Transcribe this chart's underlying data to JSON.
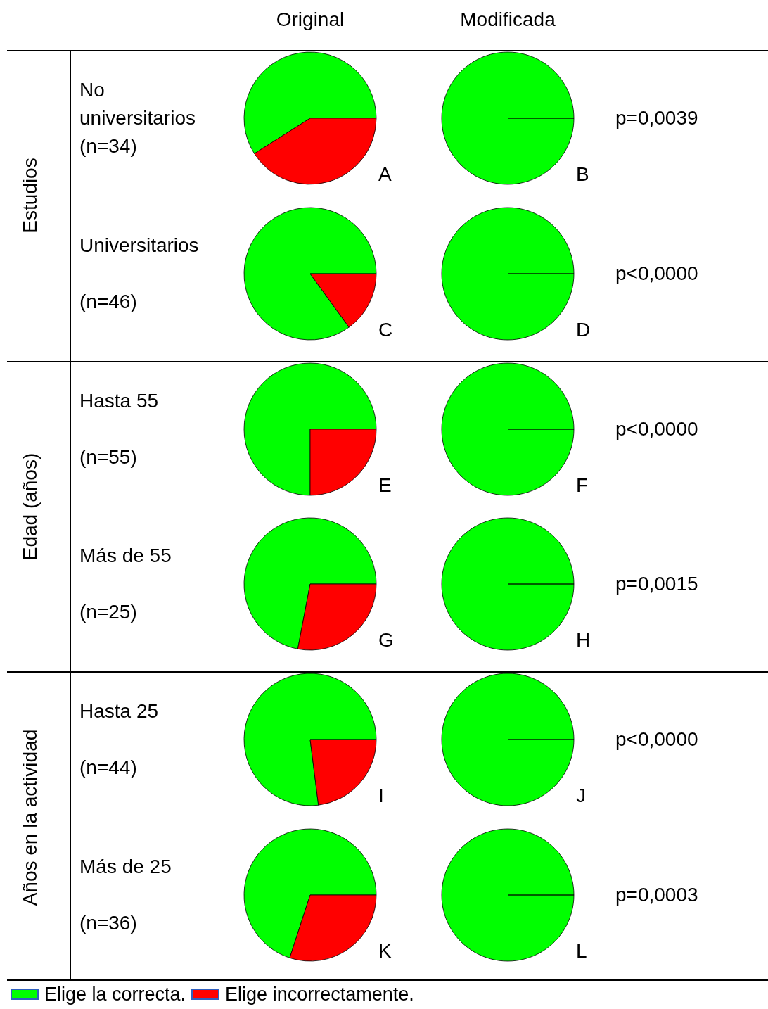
{
  "chart_data": [
    {
      "type": "pie",
      "title": "A",
      "subtitle": "Original",
      "categories": [
        "Elige la correcta.",
        "Elige incorrectamente."
      ],
      "values": [
        59,
        41
      ],
      "colors": [
        "#00ff00",
        "#ff0000"
      ],
      "legend": "bottom",
      "annotations": [
        "No\nuniversitarios\n(n=34)",
        "Estudios"
      ]
    },
    {
      "type": "pie",
      "title": "B",
      "subtitle": "Modificada",
      "categories": [
        null,
        null
      ],
      "values": [
        100,
        0
      ],
      "colors": [
        "#00ff00",
        "#ff0000"
      ],
      "annotations": [
        "p=0,0039"
      ]
    },
    {
      "type": "pie",
      "title": "C",
      "categories": [
        null,
        null
      ],
      "values": [
        85,
        15
      ],
      "colors": [
        "#00ff00",
        "#ff0000"
      ],
      "annotations": [
        "Universitarios\n\n(n=46)"
      ]
    },
    {
      "type": "pie",
      "title": "D",
      "categories": [
        null,
        null
      ],
      "values": [
        100,
        0
      ],
      "colors": [
        "#00ff00",
        "#ff0000"
      ],
      "annotations": [
        "p<0,0000"
      ]
    },
    {
      "type": "pie",
      "title": "E",
      "categories": [
        null,
        null
      ],
      "values": [
        75,
        25
      ],
      "colors": [
        "#00ff00",
        "#ff0000"
      ],
      "annotations": [
        "Hasta 55\n\n(n=55)",
        "Edad (años)"
      ]
    },
    {
      "type": "pie",
      "title": "F",
      "categories": [
        null,
        null
      ],
      "values": [
        100,
        0
      ],
      "colors": [
        "#00ff00",
        "#ff0000"
      ],
      "annotations": [
        "p<0,0000"
      ]
    },
    {
      "type": "pie",
      "title": "G",
      "categories": [
        null,
        null
      ],
      "values": [
        72,
        28
      ],
      "colors": [
        "#00ff00",
        "#ff0000"
      ],
      "annotations": [
        "Más de 55\n\n(n=25)"
      ]
    },
    {
      "type": "pie",
      "title": "H",
      "categories": [
        null,
        null
      ],
      "values": [
        100,
        0
      ],
      "colors": [
        "#00ff00",
        "#ff0000"
      ],
      "annotations": [
        "p=0,0015"
      ]
    },
    {
      "type": "pie",
      "title": "I",
      "categories": [
        null,
        null
      ],
      "values": [
        77,
        23
      ],
      "colors": [
        "#00ff00",
        "#ff0000"
      ],
      "annotations": [
        "Hasta 25\n\n(n=44)",
        "Años en la actividad"
      ]
    },
    {
      "type": "pie",
      "title": "J",
      "categories": [
        null,
        null
      ],
      "values": [
        100,
        0
      ],
      "colors": [
        "#00ff00",
        "#ff0000"
      ],
      "annotations": [
        "p<0,0000"
      ]
    },
    {
      "type": "pie",
      "title": "K",
      "categories": [
        null,
        null
      ],
      "values": [
        70,
        30
      ],
      "colors": [
        "#00ff00",
        "#ff0000"
      ],
      "annotations": [
        "Más de 25\n\n(n=36)"
      ]
    },
    {
      "type": "pie",
      "title": "L",
      "categories": [
        null,
        null
      ],
      "values": [
        100,
        0
      ],
      "colors": [
        "#00ff00",
        "#ff0000"
      ],
      "annotations": [
        "p=0,0003"
      ]
    }
  ]
}
